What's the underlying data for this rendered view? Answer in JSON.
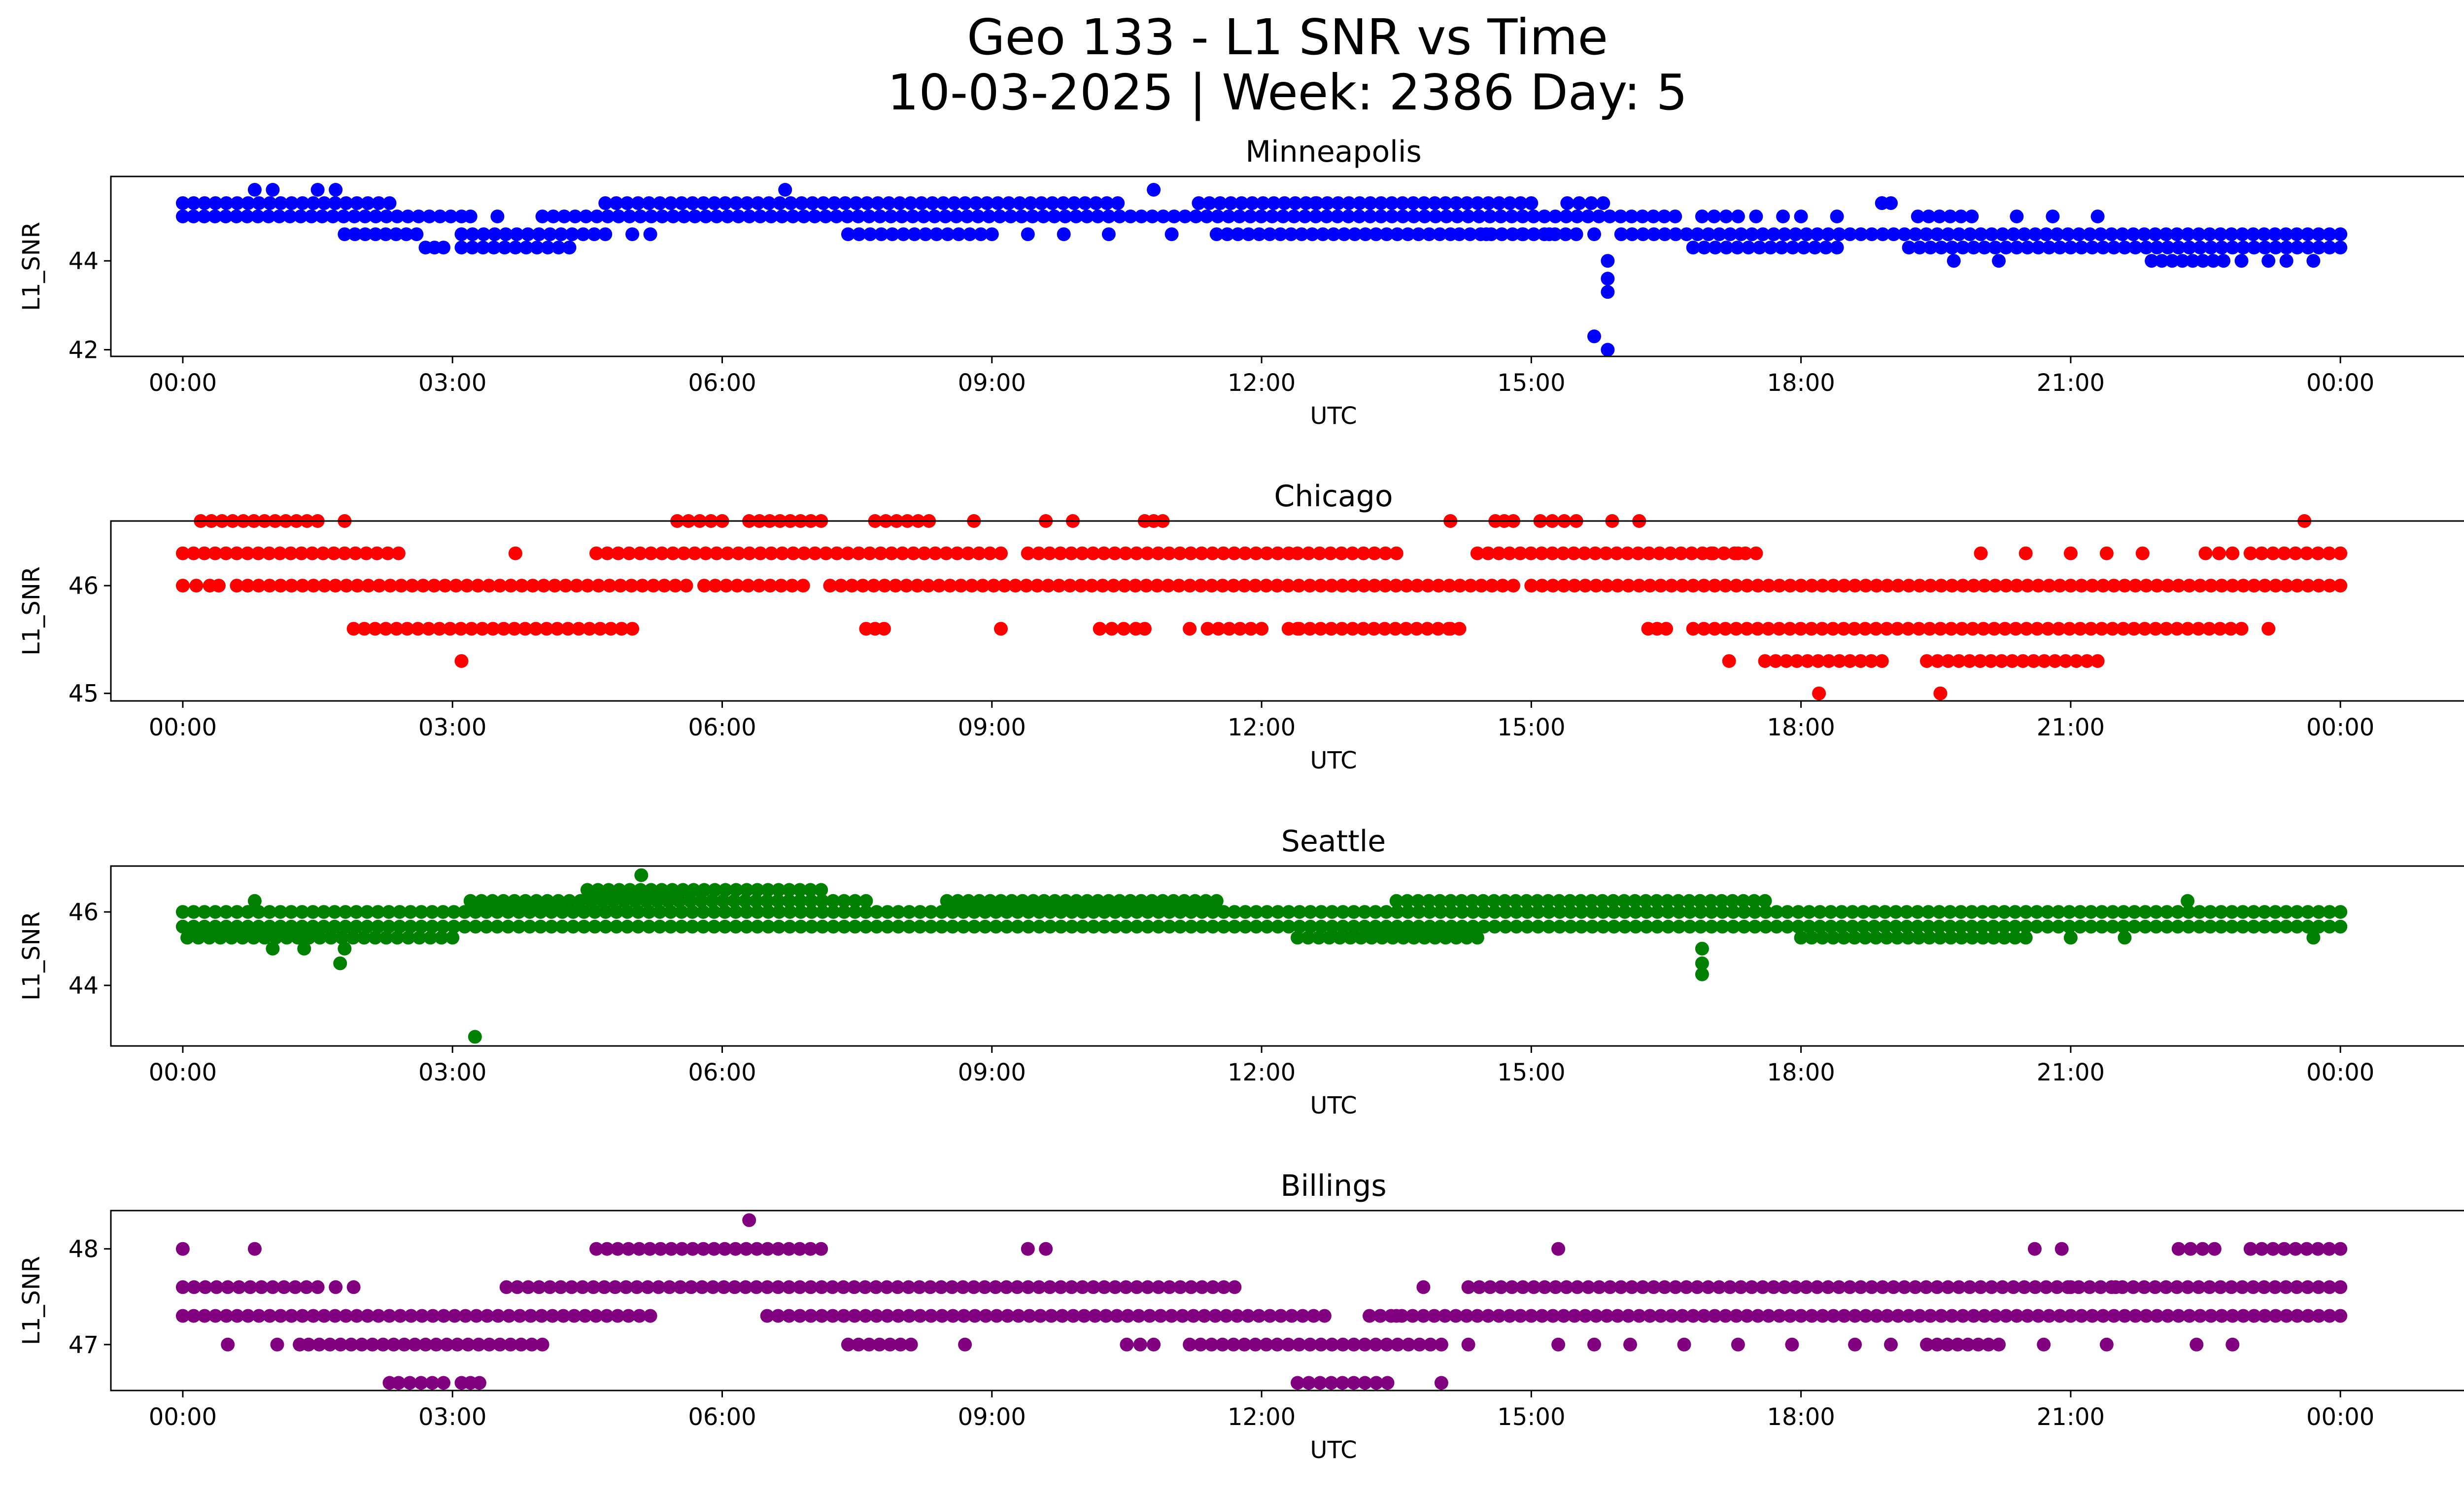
{
  "figure": {
    "title_line1": "Geo 133 - L1 SNR vs Time",
    "title_line2": "10-03-2025 | Week: 2386 Day: 5"
  },
  "chart_data": [
    {
      "type": "scatter",
      "title": "Minneapolis",
      "color": "#0000ff",
      "xlabel": "UTC",
      "ylabel": "L1_SNR",
      "xlim": [
        -0.8,
        26.4
      ],
      "ylim": [
        41.85,
        45.9
      ],
      "x_ticks": [
        0,
        3,
        6,
        9,
        12,
        15,
        18,
        21,
        24
      ],
      "x_tick_labels": [
        "00:00",
        "03:00",
        "06:00",
        "09:00",
        "12:00",
        "15:00",
        "18:00",
        "21:00",
        "00:00"
      ],
      "y_ticks": [
        42,
        44
      ],
      "y_tick_labels": [
        "42",
        "44"
      ],
      "bands": [
        {
          "level": 45.3,
          "ranges": [
            [
              0,
              2.3
            ],
            [
              4.7,
              10.4
            ],
            [
              11.3,
              15.0
            ],
            [
              15.4,
              15.8
            ],
            [
              18.9,
              19.0
            ]
          ]
        },
        {
          "level": 45.0,
          "ranges": [
            [
              0,
              3.1
            ],
            [
              4.0,
              16.6
            ],
            [
              16.9,
              17.3
            ],
            [
              19.3,
              19.9
            ]
          ]
        },
        {
          "level": 44.6,
          "ranges": [
            [
              1.8,
              2.6
            ],
            [
              3.1,
              4.7
            ],
            [
              7.4,
              9.0
            ],
            [
              11.5,
              14.1
            ],
            [
              14.2,
              15.5
            ],
            [
              16.0,
              24.0
            ]
          ]
        },
        {
          "level": 44.3,
          "ranges": [
            [
              2.7,
              2.9
            ],
            [
              3.1,
              4.3
            ],
            [
              16.8,
              18.4
            ],
            [
              19.2,
              24.0
            ]
          ]
        },
        {
          "level": 44.0,
          "ranges": [
            [
              21.9,
              22.7
            ]
          ]
        }
      ],
      "points": [
        {
          "x": 0.8,
          "y": 45.6
        },
        {
          "x": 1.0,
          "y": 45.6
        },
        {
          "x": 1.5,
          "y": 45.6
        },
        {
          "x": 1.7,
          "y": 45.6
        },
        {
          "x": 6.7,
          "y": 45.6
        },
        {
          "x": 10.8,
          "y": 45.6
        },
        {
          "x": 3.2,
          "y": 45.0
        },
        {
          "x": 3.5,
          "y": 45.0
        },
        {
          "x": 5.0,
          "y": 44.6
        },
        {
          "x": 5.2,
          "y": 44.6
        },
        {
          "x": 4.3,
          "y": 44.3
        },
        {
          "x": 9.4,
          "y": 44.6
        },
        {
          "x": 9.8,
          "y": 44.6
        },
        {
          "x": 10.3,
          "y": 44.6
        },
        {
          "x": 11.0,
          "y": 44.6
        },
        {
          "x": 12.6,
          "y": 45.3
        },
        {
          "x": 14.5,
          "y": 44.6
        },
        {
          "x": 14.9,
          "y": 44.6
        },
        {
          "x": 15.2,
          "y": 44.6
        },
        {
          "x": 15.7,
          "y": 44.6
        },
        {
          "x": 17.5,
          "y": 45.0
        },
        {
          "x": 17.8,
          "y": 45.0
        },
        {
          "x": 18.0,
          "y": 45.0
        },
        {
          "x": 18.4,
          "y": 45.0
        },
        {
          "x": 18.9,
          "y": 45.3
        },
        {
          "x": 20.4,
          "y": 45.0
        },
        {
          "x": 20.8,
          "y": 45.0
        },
        {
          "x": 21.3,
          "y": 45.0
        },
        {
          "x": 19.7,
          "y": 44.0
        },
        {
          "x": 20.2,
          "y": 44.0
        },
        {
          "x": 22.9,
          "y": 44.0
        },
        {
          "x": 23.2,
          "y": 44.0
        },
        {
          "x": 23.4,
          "y": 44.0
        },
        {
          "x": 23.7,
          "y": 44.0
        },
        {
          "x": 15.7,
          "y": 42.3
        },
        {
          "x": 15.85,
          "y": 42.0
        },
        {
          "x": 15.85,
          "y": 43.3
        },
        {
          "x": 15.85,
          "y": 43.6
        },
        {
          "x": 15.85,
          "y": 44.0
        }
      ]
    },
    {
      "type": "scatter",
      "title": "Chicago",
      "color": "#ff0000",
      "xlabel": "UTC",
      "ylabel": "L1_SNR",
      "xlim": [
        -0.8,
        26.4
      ],
      "ylim": [
        44.93,
        46.6
      ],
      "x_ticks": [
        0,
        3,
        6,
        9,
        12,
        15,
        18,
        21,
        24
      ],
      "x_tick_labels": [
        "00:00",
        "03:00",
        "06:00",
        "09:00",
        "12:00",
        "15:00",
        "18:00",
        "21:00",
        "00:00"
      ],
      "y_ticks": [
        45,
        46
      ],
      "y_tick_labels": [
        "45",
        "46"
      ],
      "bands": [
        {
          "level": 46.6,
          "ranges": [
            [
              0.2,
              1.5
            ],
            [
              5.5,
              6.0
            ],
            [
              6.3,
              7.1
            ],
            [
              7.7,
              8.3
            ],
            [
              10.7,
              10.9
            ],
            [
              14.6,
              14.8
            ],
            [
              15.1,
              15.5
            ]
          ]
        },
        {
          "level": 46.3,
          "ranges": [
            [
              0,
              2.4
            ],
            [
              4.6,
              9.1
            ],
            [
              9.4,
              12.3
            ],
            [
              12.4,
              13.5
            ],
            [
              14.4,
              17.5
            ],
            [
              22.5,
              22.8
            ],
            [
              23.0,
              24.0
            ]
          ]
        },
        {
          "level": 46.0,
          "ranges": [
            [
              0,
              0.3
            ],
            [
              0.6,
              5.6
            ],
            [
              5.8,
              6.9
            ],
            [
              7.2,
              12.9
            ],
            [
              12.9,
              14.8
            ],
            [
              15.0,
              24.0
            ]
          ]
        },
        {
          "level": 45.6,
          "ranges": [
            [
              1.9,
              5.0
            ],
            [
              7.6,
              7.8
            ],
            [
              10.2,
              10.6
            ],
            [
              11.4,
              12.0
            ],
            [
              12.3,
              14.2
            ],
            [
              16.3,
              16.5
            ],
            [
              16.8,
              22.9
            ]
          ]
        },
        {
          "level": 45.3,
          "ranges": [
            [
              17.6,
              18.9
            ],
            [
              19.4,
              21.3
            ]
          ]
        }
      ],
      "points": [
        {
          "x": 3.1,
          "y": 45.3
        },
        {
          "x": 17.2,
          "y": 45.3
        },
        {
          "x": 18.2,
          "y": 45.0
        },
        {
          "x": 19.55,
          "y": 45.0
        },
        {
          "x": 9.1,
          "y": 45.6
        },
        {
          "x": 10.7,
          "y": 45.6
        },
        {
          "x": 11.2,
          "y": 45.6
        },
        {
          "x": 12.4,
          "y": 45.6
        },
        {
          "x": 14.1,
          "y": 45.6
        },
        {
          "x": 23.2,
          "y": 45.6
        },
        {
          "x": 3.7,
          "y": 46.3
        },
        {
          "x": 17.0,
          "y": 46.3
        },
        {
          "x": 17.3,
          "y": 46.3
        },
        {
          "x": 20.0,
          "y": 46.3
        },
        {
          "x": 20.5,
          "y": 46.3
        },
        {
          "x": 21.0,
          "y": 46.3
        },
        {
          "x": 21.4,
          "y": 46.3
        },
        {
          "x": 21.8,
          "y": 46.3
        },
        {
          "x": 0.4,
          "y": 46.0
        },
        {
          "x": 23.6,
          "y": 46.6
        },
        {
          "x": 8.8,
          "y": 46.6
        },
        {
          "x": 9.6,
          "y": 46.6
        },
        {
          "x": 9.9,
          "y": 46.6
        },
        {
          "x": 14.1,
          "y": 46.6
        },
        {
          "x": 15.9,
          "y": 46.6
        },
        {
          "x": 16.2,
          "y": 46.6
        },
        {
          "x": 1.8,
          "y": 46.6
        }
      ]
    },
    {
      "type": "scatter",
      "title": "Seattle",
      "color": "#008000",
      "xlabel": "UTC",
      "ylabel": "L1_SNR",
      "xlim": [
        -0.8,
        26.4
      ],
      "ylim": [
        42.35,
        47.25
      ],
      "x_ticks": [
        0,
        3,
        6,
        9,
        12,
        15,
        18,
        21,
        24
      ],
      "x_tick_labels": [
        "00:00",
        "03:00",
        "06:00",
        "09:00",
        "12:00",
        "15:00",
        "18:00",
        "21:00",
        "00:00"
      ],
      "y_ticks": [
        44,
        46
      ],
      "y_tick_labels": [
        "44",
        "46"
      ],
      "bands": [
        {
          "level": 46.6,
          "ranges": [
            [
              4.5,
              7.1
            ]
          ]
        },
        {
          "level": 46.3,
          "ranges": [
            [
              3.2,
              7.6
            ],
            [
              8.5,
              11.5
            ],
            [
              13.5,
              17.6
            ]
          ]
        },
        {
          "level": 46.0,
          "ranges": [
            [
              0,
              24.0
            ]
          ]
        },
        {
          "level": 45.6,
          "ranges": [
            [
              0,
              24.0
            ]
          ]
        },
        {
          "level": 45.3,
          "ranges": [
            [
              0.05,
              3.0
            ],
            [
              12.4,
              14.4
            ],
            [
              18.0,
              20.5
            ]
          ]
        }
      ],
      "points": [
        {
          "x": 5.1,
          "y": 47.0
        },
        {
          "x": 1.0,
          "y": 45.0
        },
        {
          "x": 1.35,
          "y": 45.0
        },
        {
          "x": 1.8,
          "y": 45.0
        },
        {
          "x": 1.75,
          "y": 44.6
        },
        {
          "x": 3.25,
          "y": 42.6
        },
        {
          "x": 16.9,
          "y": 45.0
        },
        {
          "x": 16.9,
          "y": 44.6
        },
        {
          "x": 16.9,
          "y": 44.3
        },
        {
          "x": 0.8,
          "y": 46.3
        },
        {
          "x": 22.3,
          "y": 46.3
        },
        {
          "x": 23.7,
          "y": 45.3
        },
        {
          "x": 21.0,
          "y": 45.3
        },
        {
          "x": 21.6,
          "y": 45.3
        }
      ]
    },
    {
      "type": "scatter",
      "title": "Billings",
      "color": "#800080",
      "xlabel": "UTC",
      "ylabel": "L1_SNR",
      "xlim": [
        -0.8,
        26.4
      ],
      "ylim": [
        46.52,
        48.4
      ],
      "x_ticks": [
        0,
        3,
        6,
        9,
        12,
        15,
        18,
        21,
        24
      ],
      "x_tick_labels": [
        "00:00",
        "03:00",
        "06:00",
        "09:00",
        "12:00",
        "15:00",
        "18:00",
        "21:00",
        "00:00"
      ],
      "y_ticks": [
        47,
        48
      ],
      "y_tick_labels": [
        "47",
        "48"
      ],
      "bands": [
        {
          "level": 48.0,
          "ranges": [
            [
              4.6,
              7.1
            ],
            [
              22.2,
              22.6
            ],
            [
              23.0,
              24.0
            ]
          ]
        },
        {
          "level": 47.6,
          "ranges": [
            [
              0,
              1.5
            ],
            [
              3.6,
              11.7
            ],
            [
              14.3,
              24.0
            ]
          ]
        },
        {
          "level": 47.3,
          "ranges": [
            [
              0,
              5.2
            ],
            [
              6.5,
              12.7
            ],
            [
              13.2,
              24.0
            ]
          ]
        },
        {
          "level": 47.0,
          "ranges": [
            [
              1.4,
              4.0
            ],
            [
              7.4,
              8.1
            ],
            [
              10.5,
              10.8
            ],
            [
              11.2,
              14.0
            ],
            [
              19.4,
              20.2
            ]
          ]
        },
        {
          "level": 46.6,
          "ranges": [
            [
              2.4,
              2.9
            ],
            [
              3.1,
              3.3
            ],
            [
              12.4,
              13.4
            ]
          ]
        }
      ],
      "points": [
        {
          "x": 0.0,
          "y": 48.0
        },
        {
          "x": 0.8,
          "y": 48.0
        },
        {
          "x": 6.3,
          "y": 48.3
        },
        {
          "x": 9.4,
          "y": 48.0
        },
        {
          "x": 9.6,
          "y": 48.0
        },
        {
          "x": 15.3,
          "y": 48.0
        },
        {
          "x": 20.6,
          "y": 48.0
        },
        {
          "x": 20.9,
          "y": 48.0
        },
        {
          "x": 0.5,
          "y": 47.0
        },
        {
          "x": 1.05,
          "y": 47.0
        },
        {
          "x": 1.3,
          "y": 47.0
        },
        {
          "x": 2.3,
          "y": 46.6
        },
        {
          "x": 8.7,
          "y": 47.0
        },
        {
          "x": 14.0,
          "y": 46.6
        },
        {
          "x": 14.3,
          "y": 47.0
        },
        {
          "x": 15.3,
          "y": 47.0
        },
        {
          "x": 15.7,
          "y": 47.0
        },
        {
          "x": 16.1,
          "y": 47.0
        },
        {
          "x": 16.7,
          "y": 47.0
        },
        {
          "x": 17.3,
          "y": 47.0
        },
        {
          "x": 17.9,
          "y": 47.0
        },
        {
          "x": 18.6,
          "y": 47.0
        },
        {
          "x": 19.0,
          "y": 47.0
        },
        {
          "x": 20.7,
          "y": 47.0
        },
        {
          "x": 21.4,
          "y": 47.0
        },
        {
          "x": 22.4,
          "y": 47.0
        },
        {
          "x": 22.8,
          "y": 47.0
        },
        {
          "x": 1.7,
          "y": 47.6
        },
        {
          "x": 1.9,
          "y": 47.6
        },
        {
          "x": 13.5,
          "y": 47.3
        },
        {
          "x": 13.8,
          "y": 47.6
        },
        {
          "x": 21.0,
          "y": 47.6
        },
        {
          "x": 21.5,
          "y": 47.6
        }
      ]
    }
  ]
}
